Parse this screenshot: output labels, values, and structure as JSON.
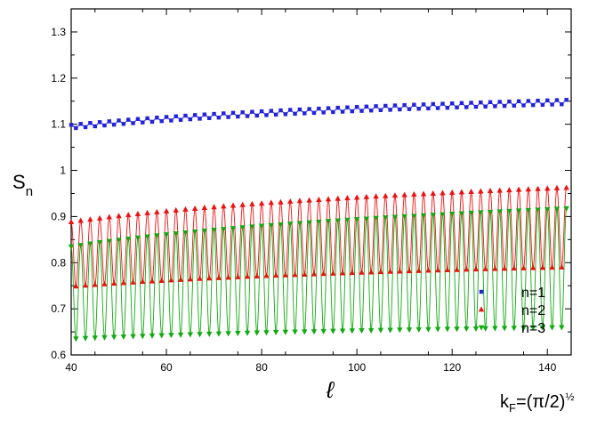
{
  "chart_data": {
    "type": "scatter",
    "xlabel": "ℓ",
    "ylabel": "S",
    "ylabel_subscript": "n",
    "annotation": {
      "base": "k",
      "sub": "F",
      "mid": "=(π/2)",
      "sup": "½"
    },
    "xlim": [
      40,
      145
    ],
    "ylim": [
      0.6,
      1.35
    ],
    "x_ticks": [
      40,
      60,
      80,
      100,
      120,
      140
    ],
    "x_tick_labels": [
      "40",
      "60",
      "80",
      "100",
      "120",
      "140"
    ],
    "y_ticks": [
      0.6,
      0.7,
      0.8,
      0.9,
      1.0,
      1.1,
      1.2,
      1.3
    ],
    "y_tick_labels": [
      "0.6",
      "0.7",
      "0.8",
      "0.9",
      "1",
      "1.1",
      "1.2",
      "1.3"
    ],
    "grid": false,
    "legend_position": "bottom-right",
    "series": [
      {
        "name": "n=1",
        "marker": "square",
        "color": "#2222dd",
        "model": {
          "a": 1.0947,
          "b": 0.0418,
          "osc": [
            0.004,
            0.0005
          ]
        }
      },
      {
        "name": "n=2",
        "marker": "triangle-up",
        "color": "#ee1111",
        "model": {
          "a": 0.818,
          "b": 0.0455,
          "osc": [
            0.07,
            0.0125
          ]
        }
      },
      {
        "name": "n=3",
        "marker": "triangle-down",
        "color": "#11aa11",
        "model": {
          "a": 0.735,
          "b": 0.042,
          "osc": [
            0.1,
            0.0224
          ]
        }
      }
    ]
  }
}
